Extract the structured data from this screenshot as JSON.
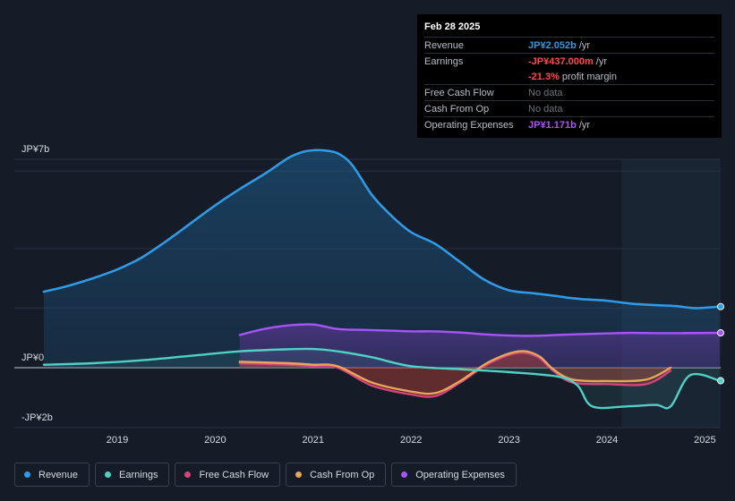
{
  "tooltip": {
    "date": "Feb 28 2025",
    "rows": {
      "revenue": {
        "label": "Revenue",
        "value": "JP¥2.052b",
        "unit": "/yr",
        "color": "#2f9ae6"
      },
      "earnings": {
        "label": "Earnings",
        "value": "-JP¥437.000m",
        "unit": "/yr",
        "color": "#ff4a4a"
      },
      "margin": {
        "value": "-21.3%",
        "unit": "profit margin",
        "color": "#ff4a4a"
      },
      "fcf": {
        "label": "Free Cash Flow",
        "value": "No data"
      },
      "cfo": {
        "label": "Cash From Op",
        "value": "No data"
      },
      "opex": {
        "label": "Operating Expenses",
        "value": "JP¥1.171b",
        "unit": "/yr",
        "color": "#a855f7"
      }
    }
  },
  "legend": [
    {
      "label": "Revenue",
      "color": "#2f9ae6"
    },
    {
      "label": "Earnings",
      "color": "#4fd1c5"
    },
    {
      "label": "Free Cash Flow",
      "color": "#d6457a"
    },
    {
      "label": "Cash From Op",
      "color": "#e8a65c"
    },
    {
      "label": "Operating Expenses",
      "color": "#a855f7"
    }
  ],
  "chart_data": {
    "type": "area",
    "currency": "JP¥",
    "y_axis_labels": [
      "JP¥7b",
      "JP¥0",
      "-JP¥2b"
    ],
    "ylim": [
      -2,
      7
    ],
    "y_unit": "billions JPY",
    "xlim": [
      2018.25,
      2025.15
    ],
    "x_ticks": [
      "2019",
      "2020",
      "2021",
      "2022",
      "2023",
      "2024",
      "2025"
    ],
    "highlight_from": 2024.15,
    "series": [
      {
        "name": "Revenue",
        "color": "#2f9ae6",
        "x": [
          2018.25,
          2018.5,
          2018.75,
          2019.0,
          2019.25,
          2019.5,
          2019.75,
          2020.0,
          2020.25,
          2020.5,
          2020.75,
          2020.9,
          2021.0,
          2021.1,
          2021.25,
          2021.4,
          2021.6,
          2021.8,
          2022.0,
          2022.25,
          2022.5,
          2022.75,
          2023.0,
          2023.25,
          2023.5,
          2023.6,
          2023.75,
          2024.0,
          2024.25,
          2024.5,
          2024.7,
          2024.9,
          2025.15
        ],
        "y": [
          2.55,
          2.75,
          3.0,
          3.3,
          3.7,
          4.25,
          4.85,
          5.45,
          6.0,
          6.5,
          7.05,
          7.25,
          7.3,
          7.3,
          7.2,
          6.8,
          5.8,
          5.1,
          4.55,
          4.15,
          3.55,
          2.95,
          2.6,
          2.5,
          2.4,
          2.35,
          2.3,
          2.25,
          2.15,
          2.1,
          2.07,
          2.0,
          2.052
        ]
      },
      {
        "name": "Earnings",
        "color": "#4fd1c5",
        "x": [
          2018.25,
          2018.75,
          2019.25,
          2019.75,
          2020.25,
          2020.75,
          2021.0,
          2021.25,
          2021.6,
          2022.0,
          2022.5,
          2023.0,
          2023.5,
          2023.7,
          2023.85,
          2024.2,
          2024.5,
          2024.65,
          2024.85,
          2025.15
        ],
        "y": [
          0.1,
          0.15,
          0.25,
          0.4,
          0.55,
          0.62,
          0.63,
          0.55,
          0.35,
          0.05,
          -0.05,
          -0.15,
          -0.3,
          -0.6,
          -1.3,
          -1.3,
          -1.25,
          -1.3,
          -0.25,
          -0.437
        ]
      },
      {
        "name": "Free Cash Flow",
        "color": "#d6457a",
        "x": [
          2020.25,
          2020.75,
          2021.0,
          2021.25,
          2021.6,
          2022.0,
          2022.25,
          2022.5,
          2022.8,
          2023.1,
          2023.3,
          2023.45,
          2023.65,
          2024.0,
          2024.4,
          2024.65
        ],
        "y": [
          0.15,
          0.1,
          0.05,
          0.0,
          -0.6,
          -0.9,
          -0.95,
          -0.5,
          0.15,
          0.5,
          0.35,
          -0.1,
          -0.5,
          -0.55,
          -0.55,
          -0.1
        ]
      },
      {
        "name": "Cash From Op",
        "color": "#e8a65c",
        "x": [
          2020.25,
          2020.75,
          2021.0,
          2021.25,
          2021.6,
          2022.0,
          2022.25,
          2022.5,
          2022.8,
          2023.1,
          2023.3,
          2023.45,
          2023.65,
          2024.0,
          2024.4,
          2024.65
        ],
        "y": [
          0.2,
          0.15,
          0.1,
          0.05,
          -0.5,
          -0.8,
          -0.85,
          -0.45,
          0.2,
          0.55,
          0.4,
          -0.05,
          -0.4,
          -0.45,
          -0.4,
          0.0
        ]
      },
      {
        "name": "Operating Expenses",
        "color": "#a855f7",
        "x": [
          2020.25,
          2020.5,
          2020.75,
          2021.0,
          2021.25,
          2021.5,
          2021.75,
          2022.0,
          2022.25,
          2022.5,
          2022.75,
          2023.0,
          2023.25,
          2023.5,
          2023.75,
          2024.0,
          2024.25,
          2024.5,
          2024.75,
          2025.15
        ],
        "y": [
          1.1,
          1.3,
          1.42,
          1.45,
          1.3,
          1.27,
          1.25,
          1.22,
          1.22,
          1.18,
          1.12,
          1.08,
          1.07,
          1.1,
          1.13,
          1.15,
          1.17,
          1.16,
          1.16,
          1.171
        ]
      }
    ]
  }
}
